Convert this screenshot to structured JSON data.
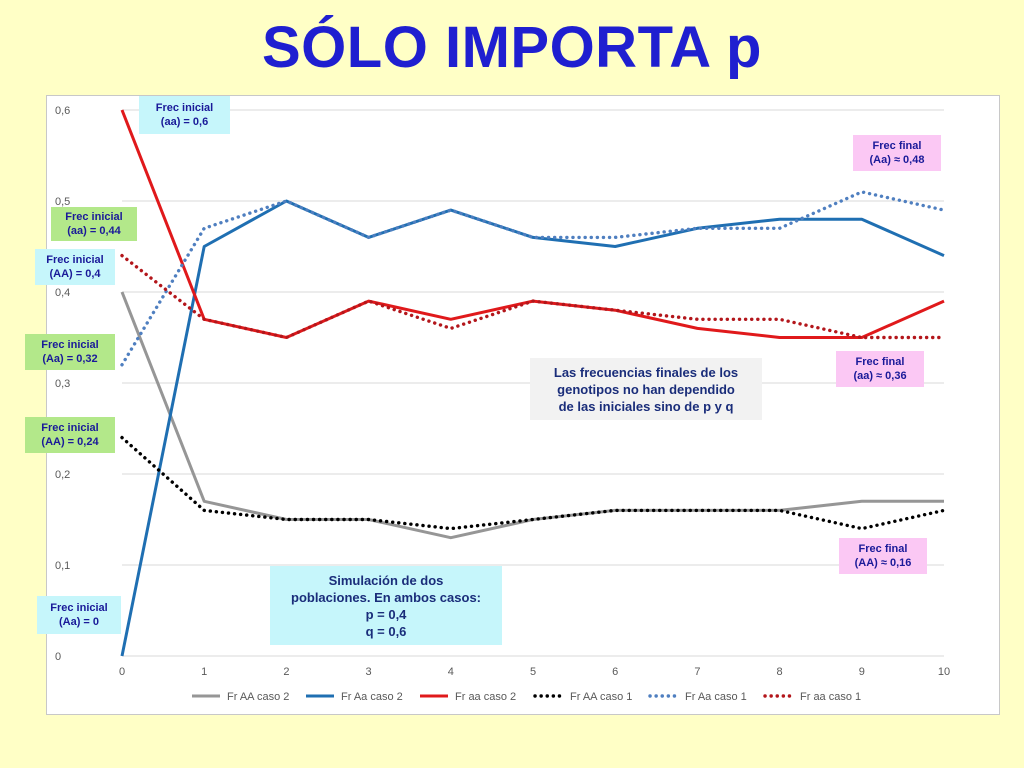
{
  "title": "SÓLO IMPORTA p",
  "chart_data": {
    "type": "line",
    "x": [
      0,
      1,
      2,
      3,
      4,
      5,
      6,
      7,
      8,
      9,
      10
    ],
    "ylim": [
      0,
      0.6
    ],
    "yticks": [
      "0",
      "0,1",
      "0,2",
      "0,3",
      "0,4",
      "0,5",
      "0,6"
    ],
    "ytick_values": [
      0,
      0.1,
      0.2,
      0.3,
      0.4,
      0.5,
      0.6
    ],
    "xticks": [
      "0",
      "1",
      "2",
      "3",
      "4",
      "5",
      "6",
      "7",
      "8",
      "9",
      "10"
    ],
    "grid": true,
    "legend_position": "bottom",
    "series": [
      {
        "name": "Fr AA caso 2",
        "color": "#969696",
        "style": "solid",
        "values": [
          0.4,
          0.17,
          0.15,
          0.15,
          0.13,
          0.15,
          0.16,
          0.16,
          0.16,
          0.17,
          0.17
        ]
      },
      {
        "name": "Fr Aa caso 2",
        "color": "#1f6fb2",
        "style": "solid",
        "values": [
          0.0,
          0.45,
          0.5,
          0.46,
          0.49,
          0.46,
          0.45,
          0.47,
          0.48,
          0.48,
          0.44
        ]
      },
      {
        "name": "Fr aa caso 2",
        "color": "#e0191b",
        "style": "solid",
        "values": [
          0.6,
          0.37,
          0.35,
          0.39,
          0.37,
          0.39,
          0.38,
          0.36,
          0.35,
          0.35,
          0.39
        ]
      },
      {
        "name": "Fr AA caso 1",
        "color": "#000000",
        "style": "dotted",
        "values": [
          0.24,
          0.16,
          0.15,
          0.15,
          0.14,
          0.15,
          0.16,
          0.16,
          0.16,
          0.14,
          0.16
        ]
      },
      {
        "name": "Fr Aa caso 1",
        "color": "#4f7fc0",
        "style": "dotted",
        "values": [
          0.32,
          0.47,
          0.5,
          0.46,
          0.49,
          0.46,
          0.46,
          0.47,
          0.47,
          0.51,
          0.49
        ]
      },
      {
        "name": "Fr aa caso 1",
        "color": "#b3161b",
        "style": "dotted",
        "values": [
          0.44,
          0.37,
          0.35,
          0.39,
          0.36,
          0.39,
          0.38,
          0.37,
          0.37,
          0.35,
          0.35
        ]
      }
    ]
  },
  "annotations": {
    "init_aa_06": [
      "Frec inicial",
      "(aa) = 0,6"
    ],
    "init_aa_044": [
      "Frec inicial",
      "(aa) = 0,44"
    ],
    "init_AA_04": [
      "Frec inicial",
      "(AA) = 0,4"
    ],
    "init_Aa_032": [
      "Frec inicial",
      "(Aa) = 0,32"
    ],
    "init_AA_024": [
      "Frec inicial",
      "(AA) = 0,24"
    ],
    "init_Aa_0": [
      "Frec inicial",
      "(Aa) = 0"
    ],
    "final_Aa": [
      "Frec final",
      "(Aa) ≈ 0,48"
    ],
    "final_aa": [
      "Frec final",
      "(aa) ≈ 0,36"
    ],
    "final_AA": [
      "Frec final",
      "(AA) ≈ 0,16"
    ]
  },
  "notes": {
    "conclusion": [
      "Las frecuencias finales de los",
      "genotipos no han dependido",
      "de las iniciales sino de p y q"
    ],
    "simulation": [
      "Simulación de dos",
      "poblaciones. En ambos casos:",
      "p = 0,4",
      "q = 0,6"
    ]
  },
  "colors": {
    "background": "#ffffc6",
    "title": "#1f1fd0",
    "green_label": "#b3e88a",
    "cyan_label": "#c6f6fb",
    "pink_label": "#fbc8f4"
  }
}
